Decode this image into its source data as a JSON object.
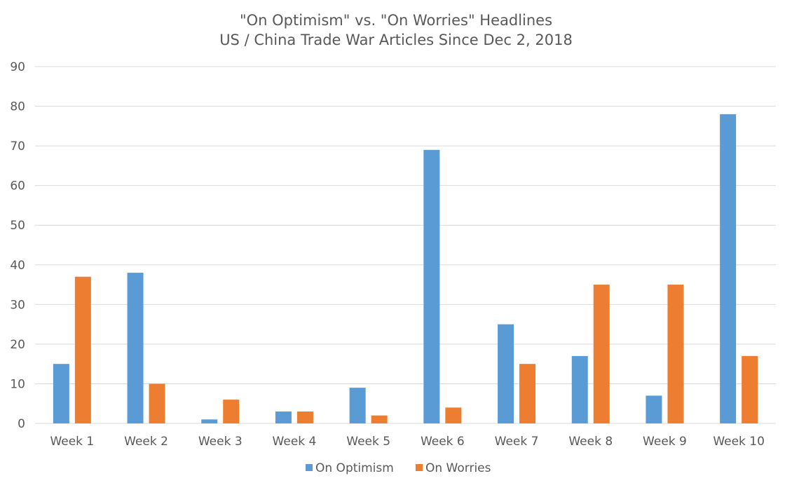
{
  "chart_data": {
    "type": "bar",
    "title": "\"On Optimism\" vs. \"On Worries\" Headlines",
    "subtitle": "US / China Trade War Articles Since Dec 2, 2018",
    "xlabel": "",
    "ylabel": "",
    "ylim": [
      0,
      90
    ],
    "yticks": [
      0,
      10,
      20,
      30,
      40,
      50,
      60,
      70,
      80,
      90
    ],
    "categories": [
      "Week 1",
      "Week 2",
      "Week 3",
      "Week 4",
      "Week 5",
      "Week 6",
      "Week 7",
      "Week 8",
      "Week 9",
      "Week 10"
    ],
    "series": [
      {
        "name": "On Optimism",
        "color": "#5b9bd5",
        "values": [
          15,
          38,
          1,
          3,
          9,
          69,
          25,
          17,
          7,
          78
        ]
      },
      {
        "name": "On Worries",
        "color": "#ed7d31",
        "values": [
          37,
          10,
          6,
          3,
          2,
          4,
          15,
          35,
          35,
          17
        ]
      }
    ],
    "grid": true,
    "legend_position": "bottom"
  }
}
